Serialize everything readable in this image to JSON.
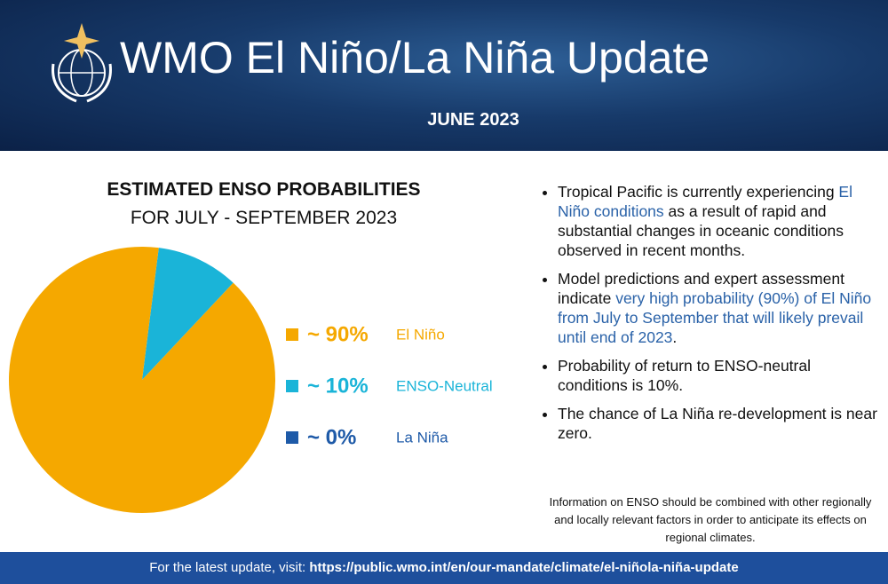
{
  "header": {
    "title": "WMO El Niño/La Niña Update",
    "date": "JUNE 2023"
  },
  "chart_data": {
    "type": "pie",
    "title": "ESTIMATED ENSO PROBABILITIES",
    "subtitle": "FOR JULY - SEPTEMBER 2023",
    "series": [
      {
        "name": "El Niño",
        "color": "#f5a800",
        "values": [
          90
        ],
        "value_labels": [
          "~ 90%"
        ]
      },
      {
        "name": "ENSO-Neutral",
        "color": "#1ab4d8",
        "values": [
          10
        ],
        "value_labels": [
          "~ 10%"
        ]
      },
      {
        "name": "La Niña",
        "color": "#1e5aa8",
        "values": [
          0
        ],
        "value_labels": [
          "~ 0%"
        ]
      }
    ]
  },
  "bullets": [
    [
      "Tropical Pacific is currently experiencing ",
      "El Niño conditions",
      " as a result of rapid and substantial changes in oceanic conditions observed in recent months."
    ],
    [
      "Model predictions and expert assessment indicate ",
      "very high probability (90%) of El Niño from July to September that will likely prevail until end of 2023",
      "."
    ],
    [
      "Probability of return to ENSO-neutral conditions is 10%."
    ],
    [
      "The chance of La Niña re-development is near zero."
    ]
  ],
  "note": "Information on ENSO should be combined with other regionally and locally relevant factors in order to anticipate its effects on regional climates.",
  "footer": {
    "text": "For the latest update, visit: ",
    "url": "https://public.wmo.int/en/our-mandate/climate/el-niñola-niña-update"
  }
}
